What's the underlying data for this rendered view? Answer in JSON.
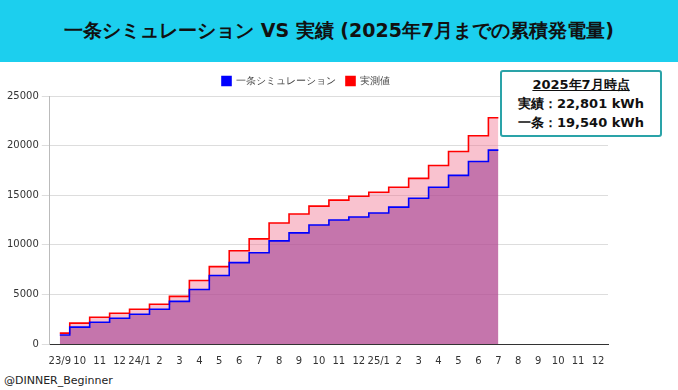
{
  "chart_data": {
    "type": "line",
    "title": "一条シミュレーション VS 実績 (2025年7月までの累積発電量)",
    "categories": [
      "23/9",
      "10",
      "11",
      "12",
      "24/1",
      "2",
      "3",
      "4",
      "5",
      "6",
      "7",
      "8",
      "9",
      "10",
      "11",
      "12",
      "25/1",
      "2",
      "3",
      "4",
      "5",
      "6",
      "7",
      "8",
      "9",
      "10",
      "11",
      "12"
    ],
    "series": [
      {
        "name": "一条シミュレーション",
        "color": "#0000ff",
        "values": [
          900,
          1700,
          2200,
          2600,
          3000,
          3500,
          4300,
          5500,
          6900,
          8200,
          9200,
          10400,
          11200,
          12000,
          12500,
          12800,
          13200,
          13800,
          14700,
          15800,
          17000,
          18400,
          19540,
          null,
          null,
          null,
          null,
          null
        ]
      },
      {
        "name": "実測値",
        "color": "#ff0000",
        "values": [
          1100,
          2100,
          2700,
          3100,
          3500,
          4000,
          4800,
          6400,
          7800,
          9400,
          10600,
          12200,
          13100,
          13900,
          14500,
          14900,
          15300,
          15800,
          16700,
          18000,
          19400,
          21000,
          22801,
          null,
          null,
          null,
          null,
          null
        ]
      }
    ],
    "ylim": [
      0,
      25000
    ],
    "yticks": [
      0,
      5000,
      10000,
      15000,
      20000,
      25000
    ],
    "grid": true,
    "legend": "top",
    "line_style": "step",
    "annotation": {
      "title": "2025年7月時点",
      "lines": [
        "実績：22,801 kWh",
        "一条：19,540 kWh"
      ]
    },
    "credit": "@DINNER_Beginner"
  }
}
